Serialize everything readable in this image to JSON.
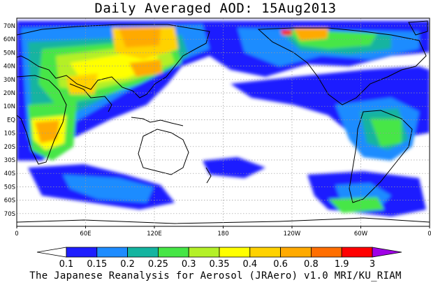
{
  "title": "Daily Averaged AOD: 15Aug2013",
  "credit": "The Japanese Reanalysis for Aerosol (JRAero) v1.0 MRI/KU_RIAM",
  "lat_labels": [
    "70N",
    "60N",
    "50N",
    "40N",
    "30N",
    "20N",
    "10N",
    "EQ",
    "10S",
    "20S",
    "30S",
    "40S",
    "50S",
    "60S",
    "70S"
  ],
  "lon_labels": [
    "0",
    "60E",
    "120E",
    "180",
    "120W",
    "60W",
    "0"
  ],
  "colorbar": {
    "levels": [
      "0.1",
      "0.15",
      "0.2",
      "0.25",
      "0.3",
      "0.35",
      "0.4",
      "0.6",
      "0.8",
      "1.9",
      "3"
    ],
    "colors": [
      "#ffffff",
      "#1e1eff",
      "#1e8cff",
      "#14b4a0",
      "#46e646",
      "#b4f028",
      "#ffff00",
      "#ffd200",
      "#ffaa00",
      "#ff6e00",
      "#ff0000",
      "#a000e6"
    ]
  },
  "palette": {
    "ocean_bg": "#ffffff",
    "coast": "#000000",
    "grid": "#9a9a9a"
  }
}
